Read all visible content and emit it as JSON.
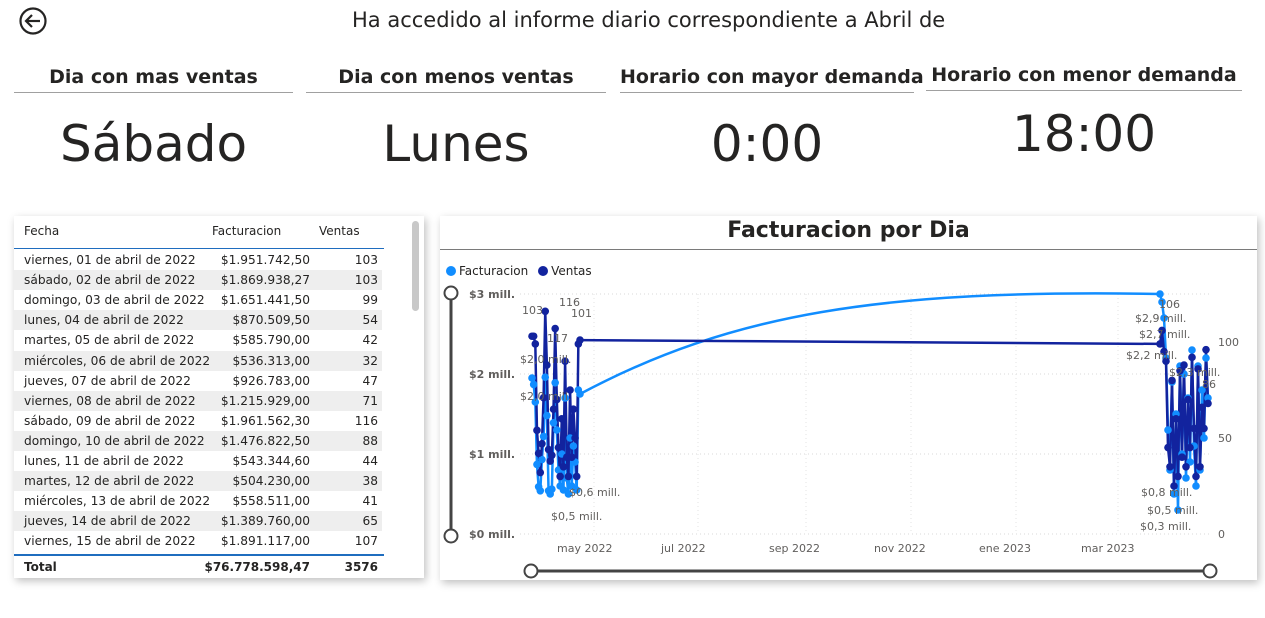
{
  "header": {
    "title": "Ha accedido al informe diario correspondiente a Abril de",
    "back_icon": "back-arrow-icon"
  },
  "kpis": [
    {
      "label": "Dia con mas ventas",
      "value": "Sábado"
    },
    {
      "label": "Dia con menos ventas",
      "value": "Lunes"
    },
    {
      "label": "Horario con mayor demanda",
      "value": "0:00"
    },
    {
      "label": "Horario con menor demanda",
      "value": "18:00"
    }
  ],
  "table": {
    "columns": [
      "Fecha",
      "Facturacion",
      "Ventas"
    ],
    "rows": [
      [
        "viernes, 01 de abril de 2022",
        "$1.951.742,50",
        "103"
      ],
      [
        "sábado, 02 de abril de 2022",
        "$1.869.938,27",
        "103"
      ],
      [
        "domingo, 03 de abril de 2022",
        "$1.651.441,50",
        "99"
      ],
      [
        "lunes, 04 de abril de 2022",
        "$870.509,50",
        "54"
      ],
      [
        "martes, 05 de abril de 2022",
        "$585.790,00",
        "42"
      ],
      [
        "miércoles, 06 de abril de 2022",
        "$536.313,00",
        "32"
      ],
      [
        "jueves, 07 de abril de 2022",
        "$926.783,00",
        "47"
      ],
      [
        "viernes, 08 de abril de 2022",
        "$1.215.929,00",
        "71"
      ],
      [
        "sábado, 09 de abril de 2022",
        "$1.961.562,30",
        "116"
      ],
      [
        "domingo, 10 de abril de 2022",
        "$1.476.822,50",
        "88"
      ],
      [
        "lunes, 11 de abril de 2022",
        "$543.344,60",
        "44"
      ],
      [
        "martes, 12 de abril de 2022",
        "$504.230,00",
        "38"
      ],
      [
        "miércoles, 13 de abril de 2022",
        "$558.511,00",
        "41"
      ],
      [
        "jueves, 14 de abril de 2022",
        "$1.389.760,00",
        "65"
      ],
      [
        "viernes, 15 de abril de 2022",
        "$1.891.117,00",
        "107"
      ]
    ],
    "total": {
      "label": "Total",
      "facturacion": "$76.778.598,47",
      "ventas": "3576"
    }
  },
  "chart_data": {
    "type": "line",
    "title": "Facturacion por Dia",
    "legend_position": "top-left",
    "grid": true,
    "x_axis": {
      "ticks": [
        "may 2022",
        "jul 2022",
        "sep 2022",
        "nov 2022",
        "ene 2023",
        "mar 2023"
      ]
    },
    "y_left": {
      "ticks": [
        "$0 mill.",
        "$1 mill.",
        "$2 mill.",
        "$3 mill."
      ],
      "range": [
        0,
        3
      ]
    },
    "y_right": {
      "ticks": [
        "0",
        "50",
        "100"
      ],
      "range": [
        0,
        125
      ]
    },
    "series": [
      {
        "name": "Facturacion",
        "color": "#118dff",
        "axis": "left",
        "cluster_a": [
          1.95,
          1.87,
          1.65,
          0.87,
          0.59,
          0.54,
          0.93,
          1.22,
          1.96,
          1.48,
          0.54,
          0.5,
          0.56,
          1.39,
          1.89,
          1.3,
          0.8,
          0.6,
          1.0,
          0.55,
          1.7,
          0.7,
          0.5,
          1.2,
          0.6,
          1.1,
          0.9,
          0.55,
          1.8,
          1.75
        ],
        "cluster_b": [
          3.0,
          2.9,
          2.7,
          2.2,
          1.3,
          0.8,
          1.9,
          0.5,
          1.5,
          0.3,
          2.1,
          1.0,
          2.0,
          0.7,
          1.7,
          0.9,
          2.3,
          1.1,
          0.6,
          2.1,
          0.8,
          1.8,
          1.2,
          2.2,
          1.7
        ]
      },
      {
        "name": "Ventas",
        "color": "#12239e",
        "axis": "right",
        "cluster_a": [
          103,
          103,
          99,
          54,
          42,
          32,
          47,
          71,
          116,
          88,
          44,
          38,
          41,
          65,
          107,
          70,
          45,
          30,
          60,
          35,
          90,
          40,
          30,
          75,
          40,
          65,
          50,
          30,
          99,
          101
        ],
        "cluster_b": [
          99,
          106,
          95,
          90,
          45,
          35,
          80,
          25,
          60,
          30,
          85,
          40,
          88,
          35,
          70,
          45,
          92,
          55,
          30,
          86,
          35,
          66,
          55,
          96,
          68
        ]
      }
    ],
    "labels": [
      "103",
      "116",
      "101",
      "117",
      "$2,0 mill.",
      "$2,0 mill.",
      "$0,6 mill.",
      "$0,5 mill.",
      "106",
      "$2,9 mill.",
      "$2,7 mill.",
      "$2,2 mill.",
      "$2,3 mill.",
      "86",
      "$0,8 mill.",
      "$0,5 mill.",
      "$0,3 mill."
    ]
  }
}
